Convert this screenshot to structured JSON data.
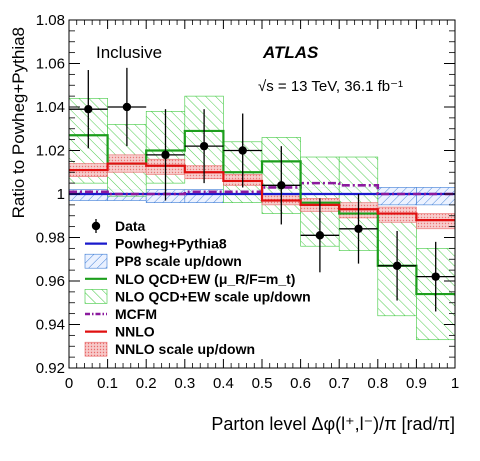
{
  "chart_data": {
    "type": "line",
    "title": "",
    "annotations": {
      "region": "Inclusive",
      "experiment": "ATLAS",
      "energy": "√s = 13 TeV, 36.1 fb⁻¹"
    },
    "xlabel": "Parton level Δφ(l⁺,l⁻)/π [rad/π]",
    "ylabel": "Ratio to Powheg+Pythia8",
    "xlim": [
      0,
      1
    ],
    "ylim": [
      0.92,
      1.08
    ],
    "xticks": [
      "0",
      "0.1",
      "0.2",
      "0.3",
      "0.4",
      "0.5",
      "0.6",
      "0.7",
      "0.8",
      "0.9",
      "1"
    ],
    "yticks": [
      "0.92",
      "0.94",
      "0.96",
      "0.98",
      "1",
      "1.02",
      "1.04",
      "1.06",
      "1.08"
    ],
    "bin_edges": [
      0,
      0.1,
      0.2,
      0.3,
      0.4,
      0.5,
      0.6,
      0.7,
      0.8,
      0.9,
      1.0
    ],
    "legend_position": "lower-left",
    "data": {
      "name": "Data",
      "color": "#000000",
      "x": [
        0.05,
        0.15,
        0.25,
        0.35,
        0.45,
        0.55,
        0.65,
        0.75,
        0.85,
        0.95
      ],
      "y": [
        1.039,
        1.04,
        1.018,
        1.022,
        1.02,
        1.004,
        0.981,
        0.984,
        0.967,
        0.962
      ],
      "err": [
        0.018,
        0.018,
        0.021,
        0.017,
        0.017,
        0.018,
        0.017,
        0.016,
        0.016,
        0.016
      ]
    },
    "series": [
      {
        "name": "Powheg+Pythia8",
        "style": "line",
        "color": "#1a1acc",
        "values": [
          1.0,
          1.0,
          1.0,
          1.0,
          1.0,
          1.0,
          1.0,
          1.0,
          1.0,
          1.0
        ]
      },
      {
        "name": "PP8 scale up/down",
        "style": "band",
        "color": "#3a7bd5",
        "low": [
          0.997,
          0.997,
          0.996,
          0.996,
          0.996,
          0.997,
          0.996,
          0.996,
          0.995,
          0.995
        ],
        "high": [
          1.002,
          1.002,
          1.002,
          1.002,
          1.002,
          1.003,
          1.003,
          1.003,
          1.003,
          1.003
        ]
      },
      {
        "name": "NLO QCD+EW (μ_R/F=m_t)",
        "style": "line",
        "color": "#1c9e1c",
        "values": [
          1.027,
          1.014,
          1.02,
          1.029,
          1.01,
          1.015,
          0.996,
          0.991,
          0.967,
          0.954
        ]
      },
      {
        "name": "NLO QCD+EW scale up/down",
        "style": "band",
        "color": "#3cc83c",
        "low": [
          1.005,
          0.999,
          1.005,
          1.01,
          0.996,
          0.991,
          0.976,
          0.974,
          0.944,
          0.933
        ],
        "high": [
          1.044,
          1.032,
          1.038,
          1.045,
          1.024,
          1.026,
          1.017,
          1.017,
          0.99,
          0.975
        ]
      },
      {
        "name": "MCFM",
        "style": "dashdot",
        "color": "#8b1a9e",
        "values": [
          1.001,
          1.0,
          1.0,
          1.001,
          1.001,
          1.003,
          1.005,
          1.004,
          1.0,
          1.0
        ]
      },
      {
        "name": "NNLO",
        "style": "line",
        "color": "#e01010",
        "values": [
          1.011,
          1.014,
          1.013,
          1.01,
          1.006,
          0.997,
          0.995,
          0.993,
          0.991,
          0.988
        ]
      },
      {
        "name": "NNLO scale up/down",
        "style": "band",
        "color": "#e86a6a",
        "low": [
          1.008,
          1.01,
          1.009,
          1.007,
          1.004,
          0.995,
          0.992,
          0.989,
          0.987,
          0.984
        ],
        "high": [
          1.014,
          1.018,
          1.016,
          1.013,
          1.009,
          1.0,
          0.998,
          0.996,
          0.994,
          0.991
        ]
      }
    ],
    "legend": [
      {
        "label": "Data",
        "kind": "marker",
        "ref": "data"
      },
      {
        "label": "Powheg+Pythia8",
        "kind": "line",
        "ref": 0
      },
      {
        "label": "PP8 scale up/down",
        "kind": "band",
        "ref": 1
      },
      {
        "label": "NLO QCD+EW (μ_R/F=m_t)",
        "kind": "line",
        "ref": 2
      },
      {
        "label": "NLO QCD+EW scale up/down",
        "kind": "band",
        "ref": 3
      },
      {
        "label": "MCFM",
        "kind": "dashdot",
        "ref": 4
      },
      {
        "label": "NNLO",
        "kind": "line",
        "ref": 5
      },
      {
        "label": "NNLO scale up/down",
        "kind": "band",
        "ref": 6
      }
    ]
  }
}
